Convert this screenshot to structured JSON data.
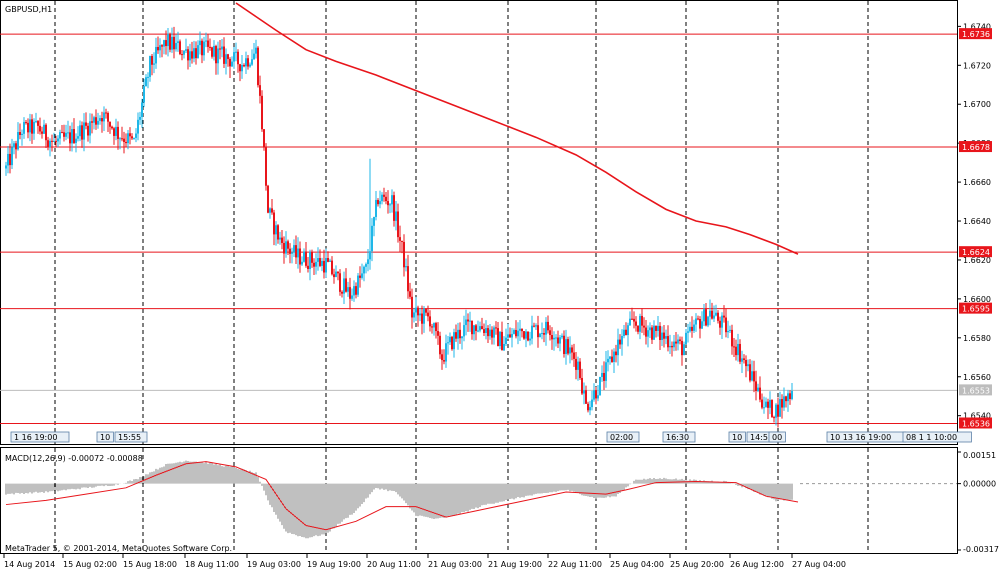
{
  "symbol_label": "GBPUSD,H1",
  "macd_label": "MACD(12,26,9) -0.00072 -0.00088",
  "copyright": "MetaTrader 5, © 2001-2014, MetaQuotes Software Corp.",
  "colors": {
    "bull": "#1fb7e8",
    "bear": "#e8151b",
    "ma": "#e8151b",
    "level_line": "#e8151b",
    "current_price_line": "#bdbdbd",
    "macd_hist": "#808080",
    "macd_signal": "#e8151b",
    "grid": "#000000"
  },
  "chart_data": [
    {
      "type": "candlestick",
      "symbol": "GBPUSD",
      "timeframe": "H1",
      "ylim": [
        1.6527,
        1.6752
      ],
      "y_ticks": [
        "1.6740",
        "1.6720",
        "1.6700",
        "1.6680",
        "1.6660",
        "1.6640",
        "1.6620",
        "1.6600",
        "1.6580",
        "1.6560",
        "1.6540"
      ],
      "x_labels": [
        "14 Aug 2014",
        "15 Aug 02:00",
        "15 Aug 18:00",
        "18 Aug 11:00",
        "19 Aug 03:00",
        "19 Aug 19:00",
        "20 Aug 11:00",
        "21 Aug 03:00",
        "21 Aug 19:00",
        "22 Aug 11:00",
        "25 Aug 04:00",
        "25 Aug 20:00",
        "26 Aug 12:00",
        "27 Aug 04:00"
      ],
      "horizontal_levels": [
        "1.6736",
        "1.6678",
        "1.6624",
        "1.6595",
        "1.6536"
      ],
      "current_price": "1.6553",
      "price_path": [
        [
          0,
          1.6667
        ],
        [
          8,
          1.6687
        ],
        [
          16,
          1.6688
        ],
        [
          24,
          1.668
        ],
        [
          32,
          1.6683
        ],
        [
          40,
          1.6688
        ],
        [
          48,
          1.6695
        ],
        [
          56,
          1.6685
        ],
        [
          64,
          1.668
        ],
        [
          72,
          1.672
        ],
        [
          80,
          1.6732
        ],
        [
          90,
          1.6727
        ],
        [
          100,
          1.6728
        ],
        [
          110,
          1.6724
        ],
        [
          118,
          1.6721
        ],
        [
          125,
          1.6727
        ],
        [
          128,
          1.669
        ],
        [
          131,
          1.6645
        ],
        [
          137,
          1.663
        ],
        [
          145,
          1.6622
        ],
        [
          152,
          1.662
        ],
        [
          160,
          1.6618
        ],
        [
          168,
          1.6607
        ],
        [
          172,
          1.6602
        ],
        [
          180,
          1.6615
        ],
        [
          186,
          1.6652
        ],
        [
          193,
          1.665
        ],
        [
          199,
          1.662
        ],
        [
          203,
          1.6592
        ],
        [
          212,
          1.659
        ],
        [
          218,
          1.657
        ],
        [
          224,
          1.658
        ],
        [
          232,
          1.6587
        ],
        [
          240,
          1.6585
        ],
        [
          248,
          1.6578
        ],
        [
          256,
          1.6583
        ],
        [
          264,
          1.6584
        ],
        [
          272,
          1.6585
        ],
        [
          280,
          1.6575
        ],
        [
          286,
          1.6567
        ],
        [
          290,
          1.6545
        ],
        [
          298,
          1.6558
        ],
        [
          306,
          1.6577
        ],
        [
          314,
          1.6588
        ],
        [
          322,
          1.6584
        ],
        [
          330,
          1.658
        ],
        [
          338,
          1.6575
        ],
        [
          346,
          1.6588
        ],
        [
          352,
          1.6593
        ],
        [
          360,
          1.6585
        ],
        [
          368,
          1.657
        ],
        [
          374,
          1.6557
        ],
        [
          380,
          1.6544
        ],
        [
          385,
          1.6543
        ],
        [
          393,
          1.6553
        ]
      ],
      "ma_path": [
        [
          115,
          1.6752
        ],
        [
          125,
          1.6745
        ],
        [
          135,
          1.6738
        ],
        [
          150,
          1.6728
        ],
        [
          165,
          1.6722
        ],
        [
          185,
          1.6715
        ],
        [
          205,
          1.6707
        ],
        [
          225,
          1.6699
        ],
        [
          245,
          1.6691
        ],
        [
          265,
          1.6683
        ],
        [
          285,
          1.6674
        ],
        [
          300,
          1.6665
        ],
        [
          315,
          1.6655
        ],
        [
          330,
          1.6646
        ],
        [
          345,
          1.664
        ],
        [
          360,
          1.6637
        ],
        [
          372,
          1.6633
        ],
        [
          385,
          1.6628
        ],
        [
          396,
          1.6623
        ]
      ],
      "markers": [
        {
          "label": "1 16 19:00",
          "bar": 4
        },
        {
          "label": "10",
          "bar": 47
        },
        {
          "label": "15:55",
          "bar": 56
        },
        {
          "label": "02:00",
          "bar": 302
        },
        {
          "label": "16:30",
          "bar": 330
        },
        {
          "label": "10",
          "bar": 363
        },
        {
          "label": "14:55",
          "bar": 372
        },
        {
          "label": "00",
          "bar": 383
        },
        {
          "label": "10 13 16 19:00",
          "bar": 412
        },
        {
          "label": "08 1 1 10:00",
          "bar": 450
        }
      ]
    },
    {
      "type": "bar",
      "name": "MACD(12,26,9)",
      "values_text": "-0.00072 -0.00088",
      "ylim": [
        -0.00317,
        0.00151
      ],
      "y_ticks": [
        "0.00151",
        "0.00000",
        "-0.00317"
      ],
      "hist_path": [
        [
          0,
          -0.0005
        ],
        [
          20,
          -0.0004
        ],
        [
          35,
          -0.00025
        ],
        [
          55,
          -5e-05
        ],
        [
          65,
          0.0002
        ],
        [
          80,
          0.0009
        ],
        [
          90,
          0.0011
        ],
        [
          100,
          0.001
        ],
        [
          115,
          0.00075
        ],
        [
          125,
          0.0005
        ],
        [
          132,
          -0.001
        ],
        [
          140,
          -0.0023
        ],
        [
          150,
          -0.0026
        ],
        [
          160,
          -0.0024
        ],
        [
          175,
          -0.0013
        ],
        [
          185,
          -0.0002
        ],
        [
          195,
          -0.0004
        ],
        [
          205,
          -0.0015
        ],
        [
          215,
          -0.0017
        ],
        [
          225,
          -0.0015
        ],
        [
          240,
          -0.001
        ],
        [
          260,
          -0.0006
        ],
        [
          280,
          -0.0003
        ],
        [
          295,
          -0.0007
        ],
        [
          305,
          -0.0006
        ],
        [
          315,
          0.0002
        ],
        [
          330,
          0.00025
        ],
        [
          345,
          0.00015
        ],
        [
          360,
          0.0001
        ],
        [
          370,
          -0.0002
        ],
        [
          385,
          -0.0008
        ],
        [
          396,
          -0.00072
        ]
      ],
      "signal_path": [
        [
          0,
          -0.001
        ],
        [
          20,
          -0.0008
        ],
        [
          40,
          -0.0005
        ],
        [
          60,
          -0.0002
        ],
        [
          75,
          0.0004
        ],
        [
          90,
          0.00095
        ],
        [
          100,
          0.00105
        ],
        [
          115,
          0.0008
        ],
        [
          130,
          0.0002
        ],
        [
          140,
          -0.0012
        ],
        [
          150,
          -0.002
        ],
        [
          160,
          -0.0022
        ],
        [
          175,
          -0.0018
        ],
        [
          190,
          -0.0011
        ],
        [
          205,
          -0.0011
        ],
        [
          220,
          -0.0016
        ],
        [
          235,
          -0.0013
        ],
        [
          255,
          -0.0009
        ],
        [
          280,
          -0.0004
        ],
        [
          300,
          -0.0005
        ],
        [
          310,
          -0.0003
        ],
        [
          325,
          5e-05
        ],
        [
          345,
          0.0001
        ],
        [
          365,
          5e-05
        ],
        [
          380,
          -0.0006
        ],
        [
          396,
          -0.00088
        ]
      ]
    }
  ]
}
